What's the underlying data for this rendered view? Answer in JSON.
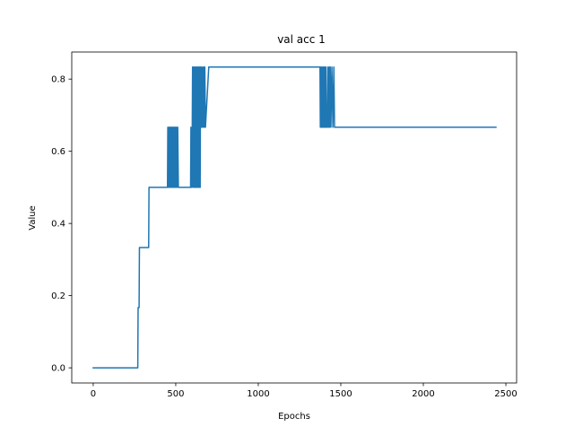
{
  "chart_data": {
    "type": "line",
    "title": "val acc 1",
    "xlabel": "Epochs",
    "ylabel": "Value",
    "xlim": [
      -130,
      2565
    ],
    "ylim": [
      -0.042,
      0.875
    ],
    "xticks": [
      0,
      500,
      1000,
      1500,
      2000,
      2500
    ],
    "yticks": [
      0.0,
      0.2,
      0.4,
      0.6,
      0.8
    ],
    "ytick_labels": [
      "0.0",
      "0.2",
      "0.4",
      "0.6",
      "0.8"
    ],
    "grid": false,
    "series": [
      {
        "color": "#1f77b4",
        "x": [
          0,
          264,
          270,
          272,
          278,
          280,
          336,
          338,
          450,
          452,
          456,
          458,
          462,
          464,
          468,
          470,
          474,
          476,
          480,
          482,
          486,
          488,
          492,
          494,
          498,
          500,
          504,
          506,
          510,
          512,
          516,
          520,
          590,
          592,
          594,
          598,
          602,
          606,
          608,
          612,
          614,
          618,
          620,
          624,
          626,
          630,
          632,
          636,
          638,
          642,
          644,
          648,
          650,
          654,
          656,
          660,
          664,
          668,
          670,
          674,
          676,
          680,
          700,
          1374,
          1376,
          1380,
          1382,
          1386,
          1388,
          1392,
          1394,
          1398,
          1400,
          1404,
          1406,
          1410,
          1412,
          1418,
          1422,
          1426,
          1430,
          1432,
          1436,
          1440,
          1446,
          1452,
          1458,
          1462,
          2440
        ],
        "y": [
          0.0,
          0.0,
          0.0,
          0.1667,
          0.1667,
          0.3333,
          0.3333,
          0.5,
          0.5,
          0.6667,
          0.5,
          0.6667,
          0.5,
          0.6667,
          0.5,
          0.6667,
          0.5,
          0.6667,
          0.5,
          0.6667,
          0.5,
          0.6667,
          0.5,
          0.6667,
          0.5,
          0.6667,
          0.5,
          0.6667,
          0.5,
          0.6667,
          0.5,
          0.5,
          0.5,
          0.6667,
          0.5,
          0.5,
          0.8333,
          0.5,
          0.8333,
          0.5,
          0.8333,
          0.5,
          0.8333,
          0.5,
          0.8333,
          0.5,
          0.8333,
          0.5,
          0.8333,
          0.5,
          0.8333,
          0.5,
          0.8333,
          0.6667,
          0.8333,
          0.6667,
          0.8333,
          0.6667,
          0.8333,
          0.6667,
          0.8333,
          0.6667,
          0.8333,
          0.8333,
          0.6667,
          0.8333,
          0.6667,
          0.8333,
          0.6667,
          0.8333,
          0.6667,
          0.8333,
          0.6667,
          0.8333,
          0.6667,
          0.8333,
          0.6667,
          0.6667,
          0.8333,
          0.6667,
          0.8333,
          0.6667,
          0.8333,
          0.6667,
          0.8333,
          0.6667,
          0.8333,
          0.6667,
          0.6667
        ]
      }
    ]
  }
}
